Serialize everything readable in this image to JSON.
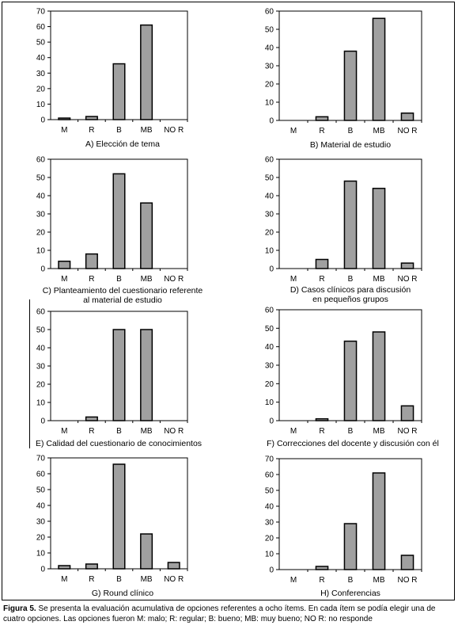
{
  "figure_caption": {
    "label": "Figura 5.",
    "text": " Se presenta la evaluación acumulativa de opciones referentes a ocho ítems. En cada ítem se podía elegir una de cuatro opciones. Las opciones fueron M: malo; R: regular;  B: bueno; MB: muy bueno; NO R: no responde"
  },
  "chart_data": [
    {
      "type": "bar",
      "categories": [
        "M",
        "R",
        "B",
        "MB",
        "NO R"
      ],
      "values": [
        1,
        2,
        36,
        61,
        0
      ],
      "ylim": [
        0,
        70
      ],
      "yticks": [
        0,
        10,
        20,
        30,
        40,
        50,
        60,
        70
      ],
      "grid": false,
      "legend": "none",
      "caption": "A) Elección de tema",
      "color": "#a0a0a0"
    },
    {
      "type": "bar",
      "categories": [
        "M",
        "R",
        "B",
        "MB",
        "NO R"
      ],
      "values": [
        0,
        2,
        38,
        56,
        4
      ],
      "ylim": [
        0,
        60
      ],
      "yticks": [
        0,
        10,
        20,
        30,
        40,
        50,
        60
      ],
      "grid": false,
      "legend": "none",
      "caption": "B) Material de estudio",
      "color": "#a0a0a0"
    },
    {
      "type": "bar",
      "categories": [
        "M",
        "R",
        "B",
        "MB",
        "NO R"
      ],
      "values": [
        4,
        8,
        52,
        36,
        0
      ],
      "ylim": [
        0,
        60
      ],
      "yticks": [
        0,
        10,
        20,
        30,
        40,
        50,
        60
      ],
      "grid": false,
      "legend": "none",
      "caption": "C) Planteamiento del cuestionario referente\nal material de estudio",
      "color": "#a0a0a0"
    },
    {
      "type": "bar",
      "categories": [
        "M",
        "R",
        "B",
        "MB",
        "NO R"
      ],
      "values": [
        0,
        5,
        48,
        44,
        3
      ],
      "ylim": [
        0,
        60
      ],
      "yticks": [
        0,
        10,
        20,
        30,
        40,
        50,
        60
      ],
      "grid": false,
      "legend": "none",
      "caption": "D) Casos clínicos para discusión\nen pequeños grupos",
      "color": "#a0a0a0"
    },
    {
      "type": "bar",
      "categories": [
        "M",
        "R",
        "B",
        "MB",
        "NO R"
      ],
      "values": [
        0,
        2,
        50,
        50,
        0
      ],
      "ylim": [
        0,
        60
      ],
      "yticks": [
        0,
        10,
        20,
        30,
        40,
        50,
        60
      ],
      "grid": false,
      "legend": "none",
      "caption": "E) Calidad del cuestionario de conocimientos",
      "color": "#a0a0a0"
    },
    {
      "type": "bar",
      "categories": [
        "M",
        "R",
        "B",
        "MB",
        "NO R"
      ],
      "values": [
        0,
        1,
        43,
        48,
        8
      ],
      "ylim": [
        0,
        60
      ],
      "yticks": [
        0,
        10,
        20,
        30,
        40,
        50,
        60
      ],
      "grid": false,
      "legend": "none",
      "caption": "F) Correcciones del docente y discusión con él",
      "color": "#a0a0a0"
    },
    {
      "type": "bar",
      "categories": [
        "M",
        "R",
        "B",
        "MB",
        "NO R"
      ],
      "values": [
        2,
        3,
        66,
        22,
        4
      ],
      "ylim": [
        0,
        70
      ],
      "yticks": [
        0,
        10,
        20,
        30,
        40,
        50,
        60,
        70
      ],
      "grid": false,
      "legend": "none",
      "caption": "G) Round clínico",
      "color": "#a0a0a0"
    },
    {
      "type": "bar",
      "categories": [
        "M",
        "R",
        "B",
        "MB",
        "NO R"
      ],
      "values": [
        0,
        2,
        29,
        61,
        9
      ],
      "ylim": [
        0,
        70
      ],
      "yticks": [
        0,
        10,
        20,
        30,
        40,
        50,
        60,
        70
      ],
      "grid": false,
      "legend": "none",
      "caption": "H) Conferencias",
      "color": "#a0a0a0"
    }
  ]
}
